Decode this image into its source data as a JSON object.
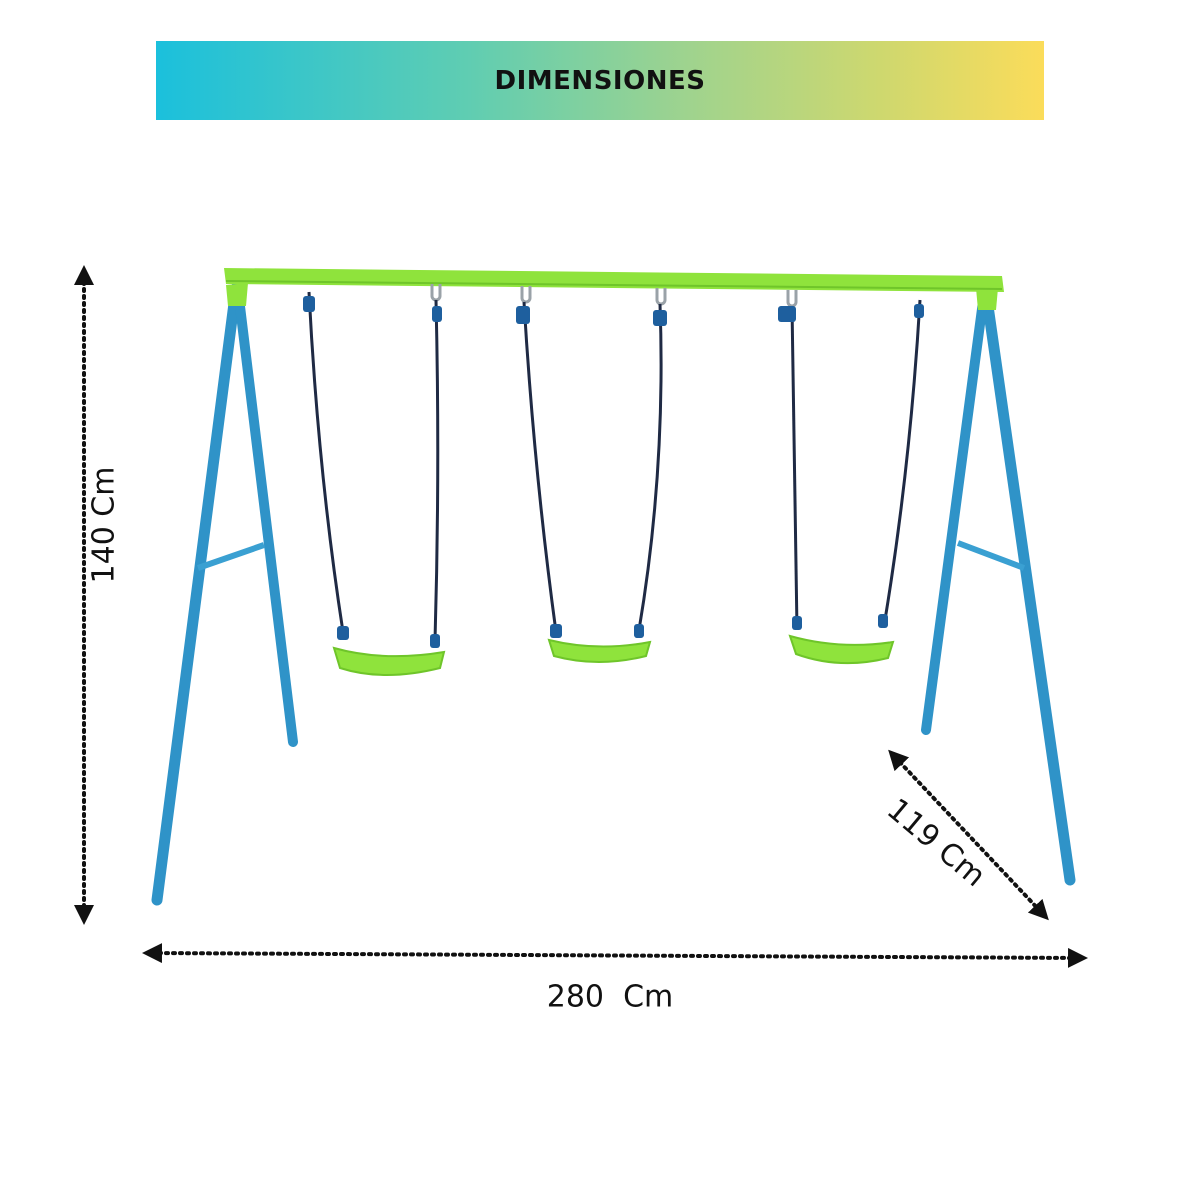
{
  "banner": {
    "title": "DIMENSIONES"
  },
  "dimensions": {
    "height": "140 Cm",
    "width": "280  Cm",
    "depth": "119 Cm"
  },
  "colors": {
    "frame_legs": "#2f93c8",
    "top_bar": "#8fe33c",
    "seats": "#8fe33c",
    "ropes": "#1f2a44",
    "arrows": "#111111"
  }
}
